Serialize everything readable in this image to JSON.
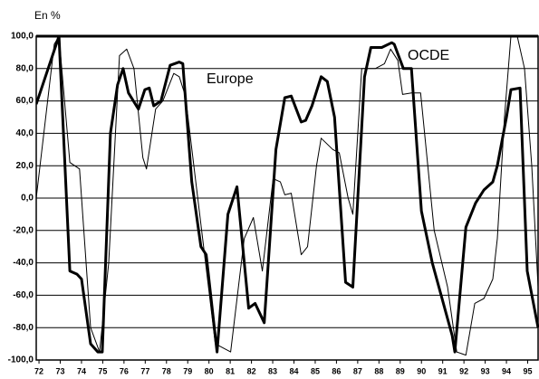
{
  "chart_data": {
    "type": "line",
    "y_label": "En %",
    "xlim": [
      71.87,
      95.49
    ],
    "xticks": [
      72,
      73,
      74,
      75,
      76,
      77,
      78,
      79,
      80,
      81,
      82,
      83,
      84,
      85,
      86,
      87,
      88,
      89,
      90,
      91,
      92,
      93,
      94,
      95
    ],
    "ylim": [
      -100,
      100
    ],
    "yticks": [
      {
        "value": -100,
        "label": "-100,0"
      },
      {
        "value": -80,
        "label": "-80,0"
      },
      {
        "value": -60,
        "label": "-60,0"
      },
      {
        "value": -40,
        "label": "-40,0"
      },
      {
        "value": -20,
        "label": "-20,0"
      },
      {
        "value": 0,
        "label": "0,0"
      },
      {
        "value": 20,
        "label": "20,0"
      },
      {
        "value": 40,
        "label": "40,0"
      },
      {
        "value": 60,
        "label": "60,0"
      },
      {
        "value": 80,
        "label": "80,0"
      },
      {
        "value": 100,
        "label": "100,0"
      }
    ],
    "grid": true,
    "series": [
      {
        "name": "OCDE",
        "color": "#000000",
        "width": 3,
        "x": [
          71.87,
          72.94,
          73.45,
          73.79,
          74.0,
          74.43,
          74.77,
          74.98,
          75.36,
          75.7,
          75.96,
          76.21,
          76.68,
          76.98,
          77.19,
          77.4,
          77.74,
          78.17,
          78.6,
          78.77,
          79.19,
          79.62,
          79.87,
          80.38,
          80.89,
          81.32,
          81.87,
          82.17,
          82.6,
          83.15,
          83.57,
          83.87,
          84.34,
          84.55,
          84.85,
          85.28,
          85.57,
          85.91,
          86.43,
          86.77,
          87.32,
          87.62,
          88.13,
          88.6,
          88.72,
          89.15,
          89.53,
          90.0,
          90.51,
          91.45,
          91.57,
          92.09,
          92.55,
          92.94,
          93.36,
          93.57,
          94.0,
          94.21,
          94.64,
          94.98,
          95.49
        ],
        "values": [
          58,
          100,
          -45,
          -47,
          -50,
          -90,
          -95,
          -95,
          40,
          70,
          80,
          65,
          55,
          67,
          68,
          57,
          60,
          82,
          84,
          83,
          10,
          -30,
          -35,
          -95,
          -10,
          7,
          -68,
          -65,
          -77,
          30,
          62,
          63,
          47,
          48,
          57,
          75,
          72,
          50,
          -52,
          -55,
          75,
          93,
          93,
          96,
          95,
          80,
          80,
          -8,
          -40,
          -85,
          -95,
          -18,
          -3,
          5,
          10,
          20,
          50,
          67,
          68,
          -45,
          -80
        ]
      },
      {
        "name": "Europe",
        "color": "#000000",
        "width": 1,
        "x": [
          71.87,
          72.72,
          72.94,
          73.45,
          73.91,
          74.43,
          74.85,
          75.28,
          75.79,
          76.13,
          76.47,
          76.89,
          77.06,
          77.49,
          77.83,
          78.34,
          78.6,
          78.89,
          80.3,
          81.02,
          81.66,
          82.09,
          82.51,
          83.02,
          83.36,
          83.57,
          83.87,
          84.34,
          84.64,
          85.06,
          85.28,
          85.83,
          86.13,
          86.55,
          86.77,
          87.19,
          87.83,
          88.26,
          88.55,
          88.89,
          89.11,
          89.53,
          89.96,
          90.6,
          91.23,
          91.66,
          92.09,
          92.51,
          92.94,
          93.36,
          93.57,
          93.91,
          94.21,
          94.51,
          94.85,
          95.19,
          95.49
        ],
        "values": [
          0,
          95,
          100,
          22,
          18,
          -80,
          -95,
          -40,
          88,
          92,
          80,
          25,
          18,
          55,
          60,
          77,
          75,
          63,
          -90,
          -95,
          -25,
          -12,
          -45,
          12,
          10,
          2,
          3,
          -35,
          -30,
          20,
          37,
          30,
          28,
          0,
          -10,
          80,
          80,
          83,
          92,
          85,
          64,
          65,
          65,
          -20,
          -55,
          -95,
          -97,
          -65,
          -62,
          -50,
          -25,
          50,
          100,
          100,
          80,
          20,
          -55
        ]
      }
    ]
  }
}
